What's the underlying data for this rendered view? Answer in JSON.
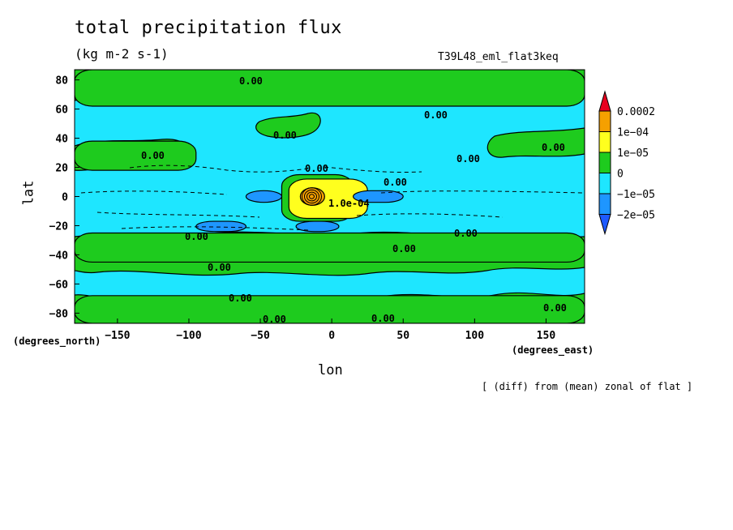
{
  "chart_data": {
    "type": "heatmap",
    "title": "total precipitation flux",
    "units": "(kg m-2 s-1)",
    "run_name": "T39L48_eml_flat3keq",
    "xlabel": "lon",
    "ylabel": "lat",
    "x_unit": "(degrees_east)",
    "y_unit": "(degrees_north)",
    "footnote": "[ (diff) from (mean) zonal of flat ]",
    "xlim": [
      -180,
      177
    ],
    "ylim": [
      -87,
      87
    ],
    "x_ticks": [
      -150,
      -100,
      -50,
      0,
      50,
      100,
      150
    ],
    "y_ticks": [
      -80,
      -60,
      -40,
      -20,
      0,
      20,
      40,
      60,
      80
    ],
    "colorbar": {
      "labels": [
        "0.0002",
        "1e-04",
        "1e-05",
        "0",
        "-1e-05",
        "-2e-05"
      ],
      "colors": [
        "#e8001e",
        "#f5a000",
        "#ffff1e",
        "#1ecb1e",
        "#1ee6ff",
        "#1e96ff",
        "#1e5aff"
      ]
    },
    "background_color": "#1ee6ff",
    "contour_labels": [
      "0.00",
      "0.00",
      "0.00",
      "0.00",
      "0.00",
      "0.00",
      "0.00",
      "0.00",
      "0.00",
      "0.00",
      "0.00",
      "0.00",
      "0.00",
      "0.00",
      "0.00",
      "1.0e-04",
      "0.00"
    ],
    "regions": [
      {
        "level": "0 to 1e-05",
        "lon": [
          -180,
          177
        ],
        "lat": [
          62,
          87
        ]
      },
      {
        "level": "0 to 1e-05",
        "lon": [
          -180,
          177
        ],
        "lat": [
          -87,
          -68
        ]
      },
      {
        "level": "0 to 1e-05",
        "lon": [
          -180,
          177
        ],
        "lat": [
          -45,
          -25
        ]
      },
      {
        "level": "0 to 1e-05",
        "lon": [
          -180,
          -95
        ],
        "lat": [
          18,
          38
        ]
      },
      {
        "level": "0 to 1e-05",
        "lon": [
          -35,
          15
        ],
        "lat": [
          -17,
          15
        ]
      },
      {
        "level": "1e-05 to 1e-04",
        "lon": [
          -30,
          25
        ],
        "lat": [
          -15,
          12
        ]
      },
      {
        "level": "1e-04 to 0.0002",
        "lon": [
          -22,
          -5
        ],
        "lat": [
          -6,
          6
        ]
      },
      {
        "level": "-2e-05 to -1e-05",
        "lon": [
          -60,
          -35
        ],
        "lat": [
          -4,
          4
        ]
      },
      {
        "level": "-2e-05 to -1e-05",
        "lon": [
          -95,
          -60
        ],
        "lat": [
          -24,
          -17
        ]
      },
      {
        "level": "-2e-05 to -1e-05",
        "lon": [
          -25,
          5
        ],
        "lat": [
          -24,
          -17
        ]
      },
      {
        "level": "-2e-05 to -1e-05",
        "lon": [
          15,
          50
        ],
        "lat": [
          -4,
          4
        ]
      }
    ]
  }
}
